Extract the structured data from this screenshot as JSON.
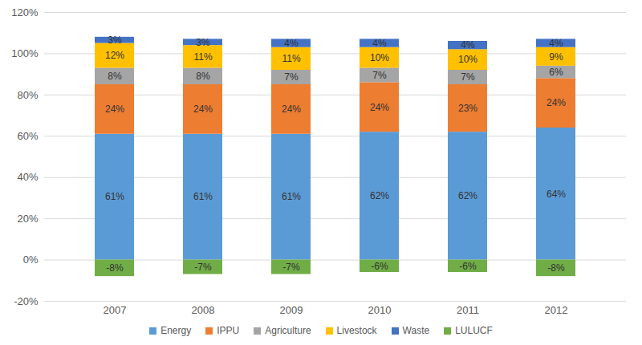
{
  "chart_data": {
    "type": "bar",
    "stacked": true,
    "data_labels": true,
    "grid": true,
    "legend": "bottom",
    "categories": [
      "2007",
      "2008",
      "2009",
      "2010",
      "2011",
      "2012"
    ],
    "ylim": [
      -20,
      120
    ],
    "yticks": [
      {
        "value": -20,
        "label": "-20%"
      },
      {
        "value": 0,
        "label": "0%"
      },
      {
        "value": 20,
        "label": "20%"
      },
      {
        "value": 40,
        "label": "40%"
      },
      {
        "value": 60,
        "label": "60%"
      },
      {
        "value": 80,
        "label": "80%"
      },
      {
        "value": 100,
        "label": "100%"
      },
      {
        "value": 120,
        "label": "120%"
      }
    ],
    "series": [
      {
        "name": "Energy",
        "color": "#5b9bd5",
        "values": [
          61,
          61,
          61,
          62,
          62,
          64
        ],
        "value_labels": [
          "61%",
          "61%",
          "61%",
          "62%",
          "62%",
          "64%"
        ]
      },
      {
        "name": "IPPU",
        "color": "#ed7d31",
        "values": [
          24,
          24,
          24,
          24,
          23,
          24
        ],
        "value_labels": [
          "24%",
          "24%",
          "24%",
          "24%",
          "23%",
          "24%"
        ]
      },
      {
        "name": "Agriculture",
        "color": "#a5a5a5",
        "values": [
          8,
          8,
          7,
          7,
          7,
          6
        ],
        "value_labels": [
          "8%",
          "8%",
          "7%",
          "7%",
          "7%",
          "6%"
        ]
      },
      {
        "name": "Livestock",
        "color": "#ffc000",
        "values": [
          12,
          11,
          11,
          10,
          10,
          9
        ],
        "value_labels": [
          "12%",
          "11%",
          "11%",
          "10%",
          "10%",
          "9%"
        ]
      },
      {
        "name": "Waste",
        "color": "#4472c4",
        "values": [
          3,
          3,
          4,
          4,
          4,
          4
        ],
        "value_labels": [
          "3%",
          "3%",
          "4%",
          "4%",
          "4%",
          "4%"
        ]
      },
      {
        "name": "LULUCF",
        "color": "#70ad47",
        "values": [
          -8,
          -7,
          -7,
          -6,
          -6,
          -8
        ],
        "value_labels": [
          "-8%",
          "-7%",
          "-7%",
          "-6%",
          "-6%",
          "-8%"
        ]
      }
    ]
  }
}
